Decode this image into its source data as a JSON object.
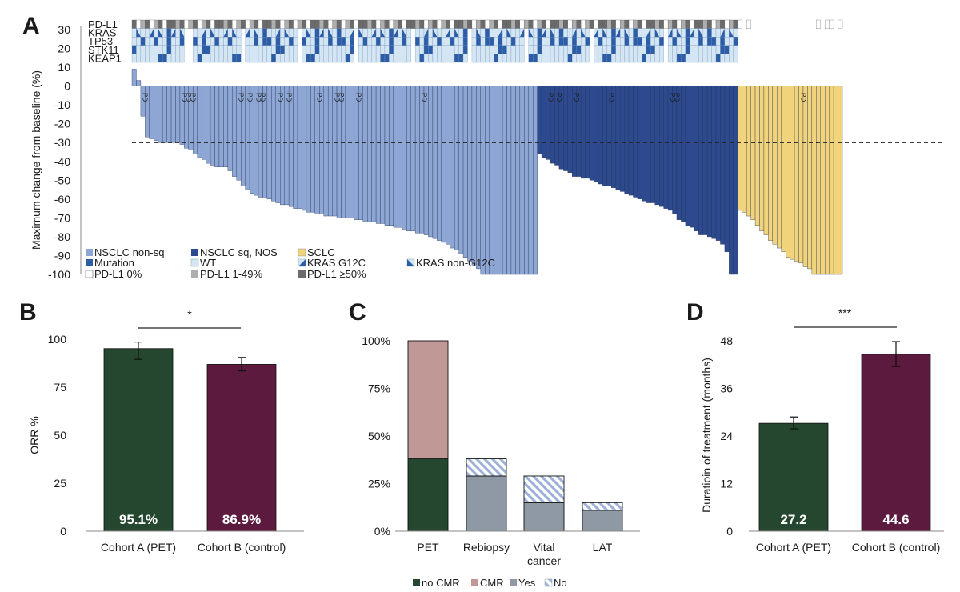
{
  "colors": {
    "nonsq": "#8EA6D3",
    "sq": "#2E4A8E",
    "sclc": "#F1D37C",
    "mutation": "#2E5DA8",
    "wt": "#D4E6F4",
    "pdl1_0": "#FFFFFF",
    "pdl1_1_49": "#AEAEAE",
    "pdl1_50": "#6B6B6B",
    "cohortA": "#25472F",
    "cohortB": "#5B1A3E",
    "cmr": "#C09896",
    "yes": "#8F99A6",
    "hatch": "#9DB1D6"
  },
  "panels": {
    "a": "A",
    "b": "B",
    "c": "C",
    "d": "D"
  },
  "chart_data": [
    {
      "id": "A",
      "type": "bar",
      "title": "",
      "ylabel": "Maximum change from baseline (%)",
      "ylim": [
        -100,
        30
      ],
      "yticks": [
        "30",
        "20",
        "10",
        "0",
        "-10",
        "-20",
        "-30",
        "-40",
        "-50",
        "-60",
        "-70",
        "-80",
        "-90",
        "-100"
      ],
      "threshold": -30,
      "gene_rows": [
        "PD-L1",
        "KRAS",
        "TP53",
        "STK11",
        "KEAP1"
      ],
      "pd_label": "PD",
      "groups": [
        {
          "name": "NSCLC non-sq",
          "values": [
            9,
            3,
            -16,
            -27,
            -28,
            -29,
            -30,
            -30,
            -30,
            -30,
            -30,
            -31,
            -33,
            -34,
            -36,
            -38,
            -39,
            -41,
            -42,
            -43,
            -43,
            -43,
            -45,
            -48,
            -50,
            -53,
            -55,
            -57,
            -58,
            -59,
            -59,
            -60,
            -61,
            -62,
            -63,
            -63,
            -64,
            -65,
            -65,
            -66,
            -67,
            -67,
            -68,
            -68,
            -69,
            -69,
            -69,
            -70,
            -70,
            -70,
            -70,
            -71,
            -71,
            -72,
            -72,
            -72,
            -73,
            -73,
            -74,
            -74,
            -75,
            -75,
            -76,
            -77,
            -77,
            -78,
            -78,
            -79,
            -80,
            -81,
            -82,
            -83,
            -84,
            -86,
            -87,
            -89,
            -91,
            -93,
            -95,
            -97,
            -100,
            -100,
            -100,
            -100,
            -100,
            -100,
            -100,
            -100,
            -100,
            -100,
            -100,
            -100,
            -100
          ],
          "pd_index": [
            2,
            11,
            12,
            13,
            24,
            26,
            28,
            29,
            33,
            35,
            42,
            46,
            47,
            51,
            66
          ]
        },
        {
          "name": "NSCLC sq, NOS",
          "values": [
            -36,
            -38,
            -39,
            -41,
            -42,
            -44,
            -45,
            -46,
            -48,
            -48,
            -49,
            -49,
            -50,
            -51,
            -52,
            -53,
            -53,
            -54,
            -55,
            -56,
            -57,
            -58,
            -59,
            -60,
            -61,
            -62,
            -62,
            -63,
            -64,
            -65,
            -66,
            -68,
            -71,
            -72,
            -74,
            -75,
            -77,
            -79,
            -79,
            -80,
            -81,
            -82,
            -84,
            -88,
            -100,
            -100
          ],
          "pd_index": [
            2,
            4,
            8,
            16,
            30,
            31
          ]
        },
        {
          "name": "SCLC",
          "values": [
            -66,
            -67,
            -69,
            -71,
            -74,
            -77,
            -79,
            -82,
            -84,
            -86,
            -88,
            -91,
            -92,
            -93,
            -94,
            -96,
            -97,
            -100,
            -100,
            -100,
            -100,
            -100,
            -100,
            -100
          ],
          "pd_index": [
            14
          ]
        }
      ],
      "legend": [
        "NSCLC non-sq",
        "NSCLC sq, NOS",
        "SCLC",
        "Mutation",
        "WT",
        "KRAS G12C",
        "KRAS non-G12C",
        "PD-L1 0%",
        "PD-L1 1-49%",
        "PD-L1 ≥50%"
      ]
    },
    {
      "id": "B",
      "type": "bar",
      "title": "",
      "ylabel": "ORR %",
      "ylim": [
        0,
        100
      ],
      "yticks": [
        "0",
        "25",
        "50",
        "75",
        "100"
      ],
      "categories": [
        "Cohort A (PET)",
        "Cohort B (control)"
      ],
      "values": [
        95.1,
        86.9
      ],
      "error_low": [
        89.5,
        83.5
      ],
      "error_high": [
        98.5,
        90.5
      ],
      "value_labels": [
        "95.1%",
        "86.9%"
      ],
      "significance": "*"
    },
    {
      "id": "C",
      "type": "bar",
      "stacked": true,
      "ylim": [
        0,
        100
      ],
      "yticks": [
        "0%",
        "25%",
        "50%",
        "75%",
        "100%"
      ],
      "categories": [
        "PET",
        "Rebiopsy",
        "Vital cancer",
        "LAT"
      ],
      "category_lines": [
        [
          "PET"
        ],
        [
          "Rebiopsy"
        ],
        [
          "Vital",
          "cancer"
        ],
        [
          "LAT"
        ]
      ],
      "series": [
        {
          "name": "no CMR",
          "values": [
            38,
            0,
            0,
            0
          ]
        },
        {
          "name": "CMR",
          "values": [
            62,
            0,
            0,
            0
          ]
        },
        {
          "name": "Yes",
          "values": [
            0,
            29,
            15,
            11
          ]
        },
        {
          "name": "No",
          "values": [
            0,
            9,
            14,
            4
          ]
        }
      ],
      "legend": [
        "no CMR",
        "CMR",
        "Yes",
        "No"
      ]
    },
    {
      "id": "D",
      "type": "bar",
      "ylabel": "Duratioin of treatment (months)",
      "ylim": [
        0,
        48
      ],
      "yticks": [
        "0",
        "12",
        "24",
        "36",
        "48"
      ],
      "categories": [
        "Cohort A (PET)",
        "Cohort B (control)"
      ],
      "values": [
        27.2,
        44.6
      ],
      "error_low": [
        25.8,
        41.5
      ],
      "error_high": [
        28.8,
        47.8
      ],
      "value_labels": [
        "27.2",
        "44.6"
      ],
      "significance": "***"
    }
  ]
}
